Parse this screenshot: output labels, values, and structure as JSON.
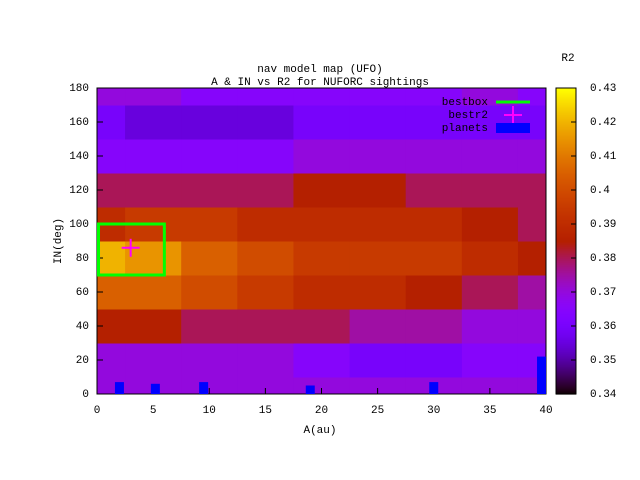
{
  "chart_data": {
    "type": "heatmap",
    "title": "nav model map (UFO)",
    "subtitle": "A & IN vs R2 for NUFORC sightings",
    "x_label": "A(au)",
    "y_label": "IN(deg)",
    "colorbar_label": "R2",
    "colormap": "gnuplot",
    "x": [
      0,
      5,
      10,
      15,
      20,
      25,
      30,
      35,
      40
    ],
    "y": [
      0,
      20,
      40,
      60,
      80,
      100,
      120,
      140,
      160,
      180
    ],
    "z": [
      [
        0.37,
        0.37,
        0.37,
        0.37,
        0.37,
        0.37,
        0.37,
        0.37,
        0.37
      ],
      [
        0.37,
        0.37,
        0.37,
        0.37,
        0.365,
        0.36,
        0.36,
        0.365,
        0.365
      ],
      [
        0.385,
        0.385,
        0.38,
        0.38,
        0.38,
        0.375,
        0.375,
        0.37,
        0.37
      ],
      [
        0.405,
        0.405,
        0.4,
        0.395,
        0.39,
        0.39,
        0.385,
        0.38,
        0.375
      ],
      [
        0.42,
        0.415,
        0.405,
        0.4,
        0.395,
        0.395,
        0.395,
        0.39,
        0.385
      ],
      [
        0.39,
        0.395,
        0.395,
        0.39,
        0.39,
        0.39,
        0.39,
        0.385,
        0.38
      ],
      [
        0.38,
        0.38,
        0.38,
        0.38,
        0.385,
        0.385,
        0.38,
        0.38,
        0.38
      ],
      [
        0.365,
        0.365,
        0.365,
        0.365,
        0.37,
        0.37,
        0.37,
        0.37,
        0.37
      ],
      [
        0.36,
        0.355,
        0.355,
        0.355,
        0.36,
        0.36,
        0.36,
        0.36,
        0.36
      ],
      [
        0.37,
        0.37,
        0.365,
        0.365,
        0.365,
        0.365,
        0.365,
        0.37,
        0.365
      ]
    ],
    "xlim": [
      0,
      40
    ],
    "ylim": [
      0,
      180
    ],
    "cblim": [
      0.34,
      0.43
    ],
    "xticks": [
      0,
      5,
      10,
      15,
      20,
      25,
      30,
      35,
      40
    ],
    "yticks": [
      0,
      20,
      40,
      60,
      80,
      100,
      120,
      140,
      160,
      180
    ],
    "cbticks": [
      0.34,
      0.35,
      0.36,
      0.37,
      0.38,
      0.39,
      0.4,
      0.41,
      0.42,
      0.43
    ],
    "legend": "top-right",
    "bestbox": {
      "name": "bestbox",
      "color": "#00ff00",
      "x": [
        0,
        6
      ],
      "y": [
        70,
        100
      ]
    },
    "bestr2": {
      "name": "bestr2",
      "color": "#ff00ff",
      "x": 3,
      "y": 86
    },
    "planets": {
      "name": "planets",
      "color": "#0000ff",
      "x": [
        2,
        5.2,
        9.5,
        19,
        30,
        39.6
      ],
      "values": [
        7,
        6,
        7,
        5,
        7,
        22
      ]
    }
  }
}
